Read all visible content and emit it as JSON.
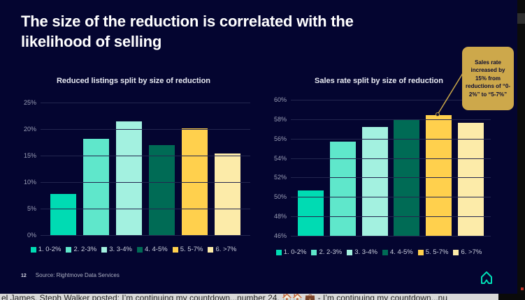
{
  "slide": {
    "title": "The size of the reduction is correlated with the likelihood of selling",
    "page_number": "12",
    "source": "Source: Rightmove Data Services"
  },
  "colors": {
    "background": "#040530",
    "bar_palette": [
      "#00DBB3",
      "#5FE7CB",
      "#A3F1E0",
      "#006B55",
      "#FFD04D",
      "#FCEBA9"
    ],
    "callout_bg": "#CDA84B",
    "logo_teal": "#00DEB6"
  },
  "legend": {
    "items": [
      {
        "label": "1. 0-2%",
        "color": "#00DBB3"
      },
      {
        "label": "2. 2-3%",
        "color": "#5FE7CB"
      },
      {
        "label": "3. 3-4%",
        "color": "#A3F1E0"
      },
      {
        "label": "4. 4-5%",
        "color": "#006B55"
      },
      {
        "label": "5. 5-7%",
        "color": "#FFD04D"
      },
      {
        "label": "6. >7%",
        "color": "#FCEBA9"
      }
    ]
  },
  "chart_data": [
    {
      "type": "bar",
      "title": "Reduced listings split by size of reduction",
      "categories": [
        "0-2%",
        "2-3%",
        "3-4%",
        "4-5%",
        "5-7%",
        ">7%"
      ],
      "values": [
        7.8,
        18.2,
        21.5,
        17.0,
        20.1,
        15.4
      ],
      "unit": "%",
      "ylim": [
        0,
        25
      ],
      "ytick_labels": [
        "25%",
        "20%",
        "15%",
        "10%",
        "5%",
        "0%"
      ],
      "grid": true,
      "legend_position": "bottom"
    },
    {
      "type": "bar",
      "title": "Sales rate split by size of reduction",
      "categories": [
        "0-2%",
        "2-3%",
        "3-4%",
        "4-5%",
        "5-7%",
        ">7%"
      ],
      "values": [
        50.7,
        55.7,
        57.2,
        58.0,
        58.4,
        57.6
      ],
      "unit": "%",
      "ylim": [
        46,
        60
      ],
      "ytick_labels": [
        "60%",
        "58%",
        "56%",
        "54%",
        "52%",
        "50%",
        "48%",
        "46%"
      ],
      "grid": true,
      "legend_position": "bottom"
    }
  ],
  "callout": {
    "text": "Sales rate increased by 15% from reductions of “0-2%” to “5-7%”"
  },
  "ticker": {
    "text_before": "el James, Steph Walker posted: I’m continuing my countdown...number 24. ",
    "emoji": "🏠🏠 💼",
    "text_after": " - I’m continuing my countdown...nu"
  }
}
